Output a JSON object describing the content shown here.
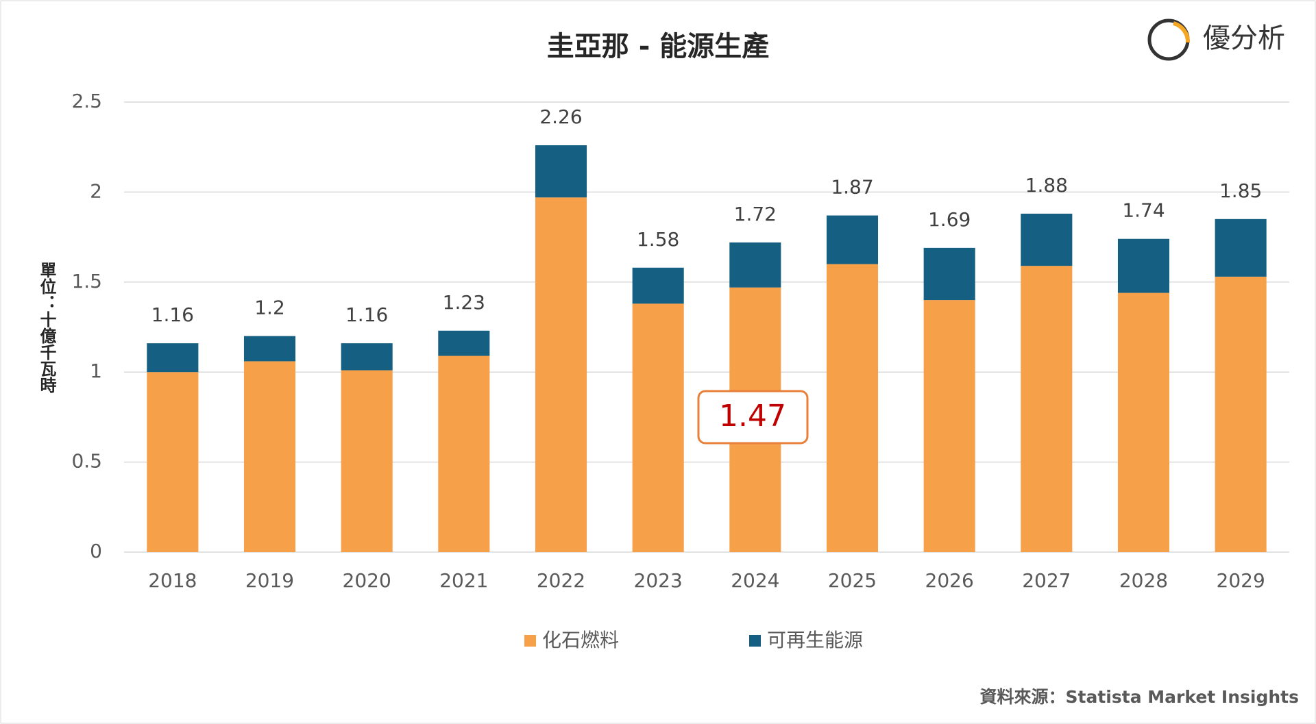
{
  "chart_data": {
    "type": "stacked_bar",
    "title": "圭亞那 - 能源生產",
    "y_label": "單位：十億千瓦時",
    "categories": [
      "2018",
      "2019",
      "2020",
      "2021",
      "2022",
      "2023",
      "2024",
      "2025",
      "2026",
      "2027",
      "2028",
      "2029"
    ],
    "series": [
      {
        "name": "化石燃料",
        "color": "#F7A04A",
        "values": [
          1.0,
          1.06,
          1.01,
          1.09,
          1.97,
          1.38,
          1.47,
          1.6,
          1.4,
          1.59,
          1.44,
          1.53
        ]
      },
      {
        "name": "可再生能源",
        "color": "#156082",
        "values": [
          0.16,
          0.14,
          0.15,
          0.14,
          0.29,
          0.2,
          0.25,
          0.27,
          0.29,
          0.29,
          0.3,
          0.32
        ]
      }
    ],
    "totals": [
      1.16,
      1.2,
      1.16,
      1.23,
      2.26,
      1.58,
      1.72,
      1.87,
      1.69,
      1.88,
      1.74,
      1.85
    ],
    "annotation": "1.47",
    "ylim": [
      0,
      2.5
    ],
    "yticks": [
      0,
      0.5,
      1,
      1.5,
      2,
      2.5
    ],
    "grid": true,
    "legend": "bottom",
    "logo": "優分析",
    "source": "資料來源：Statista Market Insights"
  }
}
